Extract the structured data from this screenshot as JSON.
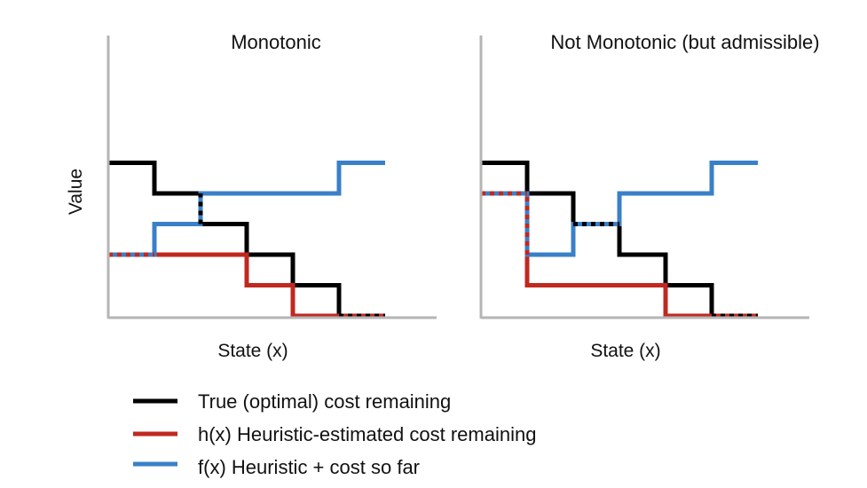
{
  "ylabel": "Value",
  "colors": {
    "true": "#000000",
    "h": "#c0281f",
    "f": "#3a80c8",
    "axis": "#b5b5b5"
  },
  "legend": [
    {
      "key": "true",
      "label": "True (optimal) cost remaining"
    },
    {
      "key": "h",
      "label": "h(x) Heuristic-estimated cost remaining"
    },
    {
      "key": "f",
      "label": "f(x) Heuristic + cost so far"
    }
  ],
  "chart_data": [
    {
      "type": "line",
      "title": "Monotonic",
      "xlabel": "State (x)",
      "ylabel": "Value",
      "xlim": [
        0,
        7.5
      ],
      "ylim": [
        0,
        5.5
      ],
      "step": "post",
      "x": [
        0,
        1,
        2,
        3,
        4,
        5,
        6
      ],
      "series": [
        {
          "name": "True (optimal) cost remaining",
          "key": "true",
          "values": [
            5,
            4,
            3,
            2,
            1,
            0,
            0
          ]
        },
        {
          "name": "h(x) Heuristic-estimated cost remaining",
          "key": "h",
          "values": [
            2,
            2,
            2,
            1,
            0,
            0,
            0
          ]
        },
        {
          "name": "f(x) Heuristic + cost so far",
          "key": "f",
          "values": [
            2,
            3,
            4,
            4,
            4,
            5,
            5
          ]
        }
      ]
    },
    {
      "type": "line",
      "title": "Not Monotonic (but admissible)",
      "xlabel": "State (x)",
      "ylabel": "",
      "xlim": [
        0,
        7.5
      ],
      "ylim": [
        0,
        5.5
      ],
      "step": "post",
      "x": [
        0,
        1,
        2,
        3,
        4,
        5,
        6
      ],
      "series": [
        {
          "name": "True (optimal) cost remaining",
          "key": "true",
          "values": [
            5,
            4,
            3,
            2,
            1,
            0,
            0
          ]
        },
        {
          "name": "h(x) Heuristic-estimated cost remaining",
          "key": "h",
          "values": [
            4,
            1,
            1,
            1,
            0,
            0,
            0
          ]
        },
        {
          "name": "f(x) Heuristic + cost so far",
          "key": "f",
          "values": [
            4,
            2,
            3,
            4,
            4,
            5,
            5
          ]
        }
      ]
    }
  ]
}
